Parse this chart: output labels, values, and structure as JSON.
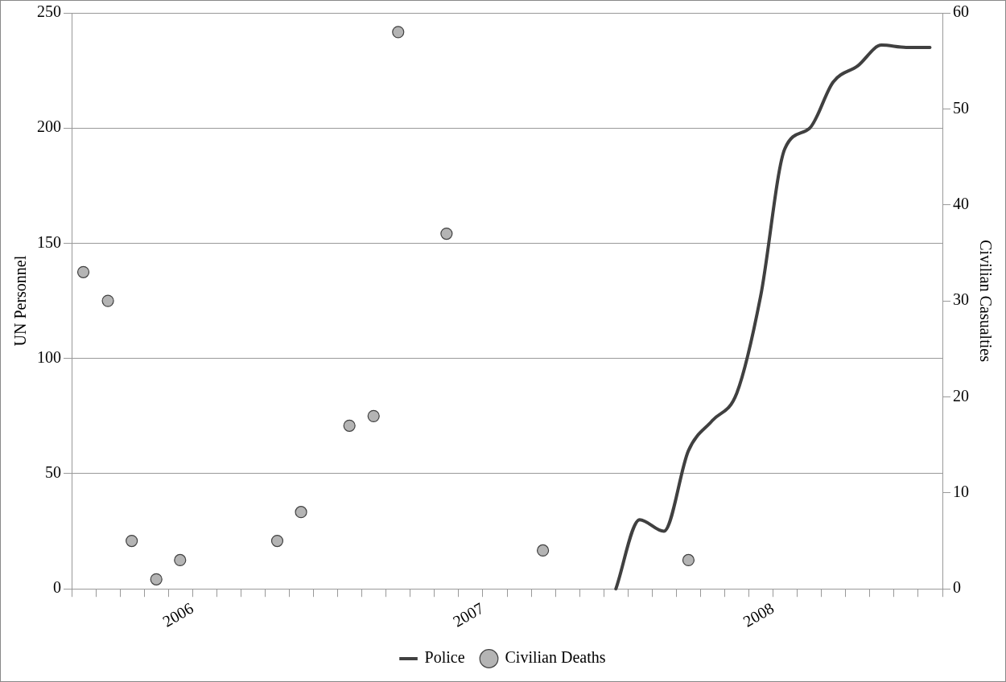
{
  "chart_data": {
    "type": "line",
    "xlabel": null,
    "ylabel": "UN Personnel",
    "y2label": "Civilian Casualties",
    "xlim": [
      "2005-08-01",
      "2008-08-01"
    ],
    "xticks": [
      {
        "value": "2005-08-01",
        "label": null
      },
      {
        "value": "2005-09-01",
        "label": null
      },
      {
        "value": "2005-10-01",
        "label": null
      },
      {
        "value": "2005-11-01",
        "label": null
      },
      {
        "value": "2005-12-01",
        "label": null
      },
      {
        "value": "2006-01-01",
        "label": "2006"
      },
      {
        "value": "2006-02-01",
        "label": null
      },
      {
        "value": "2006-03-01",
        "label": null
      },
      {
        "value": "2006-04-01",
        "label": null
      },
      {
        "value": "2006-05-01",
        "label": null
      },
      {
        "value": "2006-06-01",
        "label": null
      },
      {
        "value": "2006-07-01",
        "label": null
      },
      {
        "value": "2006-08-01",
        "label": null
      },
      {
        "value": "2006-09-01",
        "label": null
      },
      {
        "value": "2006-10-01",
        "label": null
      },
      {
        "value": "2006-11-01",
        "label": null
      },
      {
        "value": "2006-12-01",
        "label": null
      },
      {
        "value": "2007-01-01",
        "label": "2007"
      },
      {
        "value": "2007-02-01",
        "label": null
      },
      {
        "value": "2007-03-01",
        "label": null
      },
      {
        "value": "2007-04-01",
        "label": null
      },
      {
        "value": "2007-05-01",
        "label": null
      },
      {
        "value": "2007-06-01",
        "label": null
      },
      {
        "value": "2007-07-01",
        "label": null
      },
      {
        "value": "2007-08-01",
        "label": null
      },
      {
        "value": "2007-09-01",
        "label": null
      },
      {
        "value": "2007-10-01",
        "label": null
      },
      {
        "value": "2007-11-01",
        "label": null
      },
      {
        "value": "2007-12-01",
        "label": null
      },
      {
        "value": "2008-01-01",
        "label": "2008"
      },
      {
        "value": "2008-02-01",
        "label": null
      },
      {
        "value": "2008-03-01",
        "label": null
      },
      {
        "value": "2008-04-01",
        "label": null
      },
      {
        "value": "2008-05-01",
        "label": null
      },
      {
        "value": "2008-06-01",
        "label": null
      },
      {
        "value": "2008-07-01",
        "label": null
      },
      {
        "value": "2008-08-01",
        "label": null
      }
    ],
    "ylim": [
      0,
      250
    ],
    "yticks": [
      0,
      50,
      100,
      150,
      200,
      250
    ],
    "y2lim": [
      0,
      60
    ],
    "y2ticks": [
      0,
      10,
      20,
      30,
      40,
      50,
      60
    ],
    "grid": "y",
    "legend": "bottom",
    "series": [
      {
        "name": "Police",
        "type": "line",
        "color": "#404040",
        "x": [
          "2007-06-16",
          "2007-07-16",
          "2007-08-16",
          "2007-09-16",
          "2007-10-16",
          "2007-11-16",
          "2007-12-16",
          "2008-01-16",
          "2008-02-16",
          "2008-03-16",
          "2008-04-16",
          "2008-05-16",
          "2008-06-16",
          "2008-07-16"
        ],
        "values": [
          0,
          30,
          25,
          60,
          73,
          85,
          127,
          191,
          200,
          220,
          227,
          236,
          235,
          235
        ]
      },
      {
        "name": "Civilian Deaths",
        "type": "scatter",
        "axis": "y2",
        "marker": "circle",
        "color": "#b4b4b4",
        "x": [
          "2005-08-16",
          "2005-09-16",
          "2005-10-16",
          "2005-11-16",
          "2005-12-16",
          "2006-04-16",
          "2006-05-16",
          "2006-07-16",
          "2006-08-16",
          "2006-09-16",
          "2006-11-16",
          "2007-03-16",
          "2007-09-16"
        ],
        "values": [
          33,
          30,
          5,
          1,
          3,
          5,
          8,
          17,
          18,
          58,
          37,
          4,
          3
        ]
      }
    ]
  }
}
